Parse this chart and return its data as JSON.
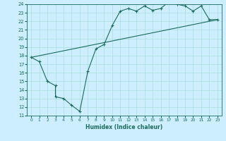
{
  "xlabel": "Humidex (Indice chaleur)",
  "bg_color": "#cceeff",
  "line_color": "#1a6b5a",
  "grid_color": "#aadddd",
  "xmin": 0,
  "xmax": 23,
  "ymin": 11,
  "ymax": 24,
  "line1_x": [
    0,
    1,
    2,
    3,
    3,
    4,
    5,
    6,
    7,
    8,
    9,
    10,
    11,
    12,
    13,
    14,
    15,
    16,
    17,
    18,
    19,
    20,
    21,
    22,
    23
  ],
  "line1_y": [
    17.8,
    17.3,
    15.0,
    14.5,
    13.2,
    13.0,
    12.2,
    11.5,
    16.2,
    18.8,
    19.3,
    21.5,
    23.2,
    23.5,
    23.2,
    23.8,
    23.3,
    23.5,
    24.3,
    24.0,
    23.8,
    23.2,
    23.8,
    22.2,
    22.2
  ],
  "line2_x": [
    0,
    23
  ],
  "line2_y": [
    17.8,
    22.2
  ]
}
